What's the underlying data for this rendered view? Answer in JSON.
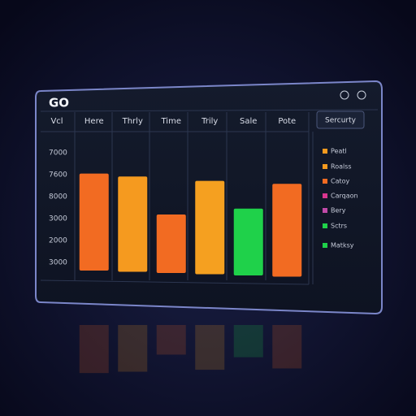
{
  "chart_data": {
    "type": "bar",
    "title": "GO",
    "corner_label": "Vcl",
    "button": "Sercurty",
    "categories": [
      "Here",
      "Thrly",
      "Time",
      "Trily",
      "Sale",
      "Pote"
    ],
    "values": [
      73,
      71,
      45,
      68,
      49,
      66
    ],
    "colors": [
      "#f26b22",
      "#f59a1f",
      "#f26b22",
      "#f5a020",
      "#1fd14a",
      "#f26b22"
    ],
    "ylim": [
      0,
      100
    ],
    "y_labels": [
      "7000",
      "7600",
      "8000",
      "3000",
      "2000",
      "3000"
    ],
    "legend_items": [
      {
        "label": "Peatl",
        "color": "#f59a1f"
      },
      {
        "label": "Roalss",
        "color": "#f59a1f"
      },
      {
        "label": "Catoy",
        "color": "#f26b22"
      },
      {
        "label": "Carqaon",
        "color": "#d9368f"
      },
      {
        "label": "Bery",
        "color": "#c04aa8"
      },
      {
        "label": "Sctrs",
        "color": "#1fd14a"
      },
      {
        "label": "Matksy",
        "color": "#1fd14a"
      }
    ]
  }
}
